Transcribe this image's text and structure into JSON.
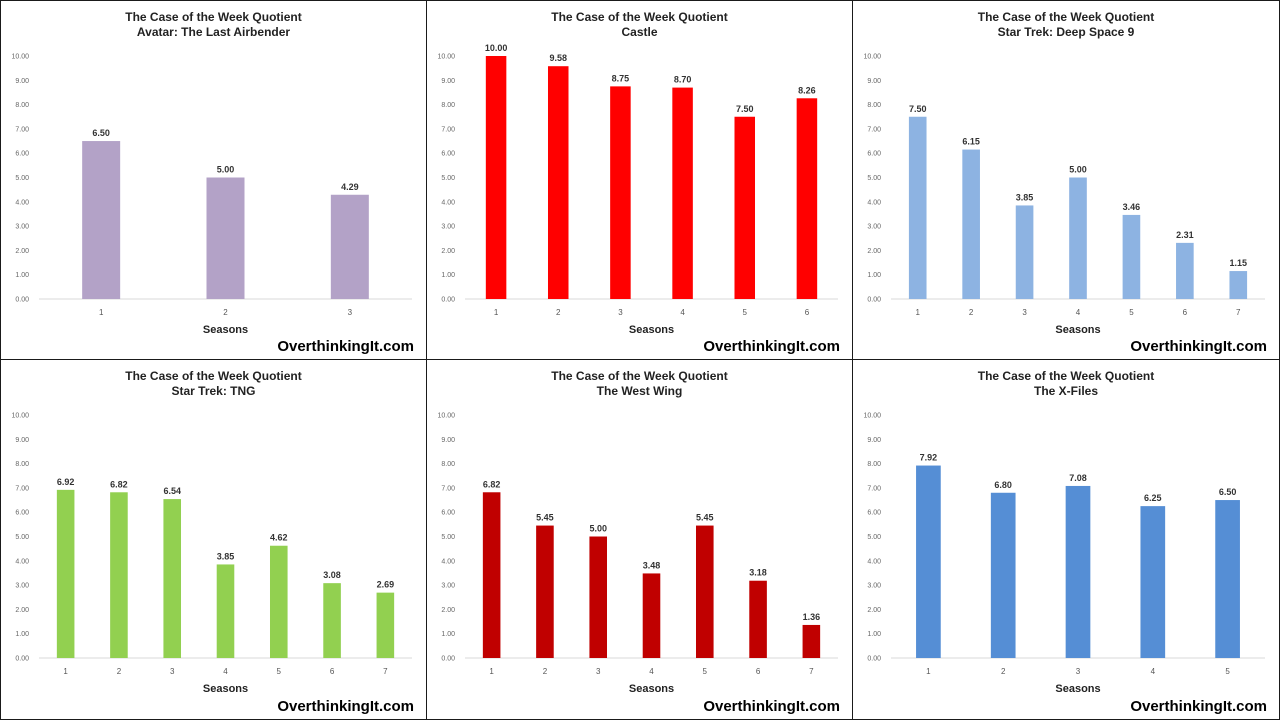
{
  "chart_data": [
    {
      "type": "bar",
      "title": "The Case of the Week Quotient",
      "subtitle": "Avatar: The Last Airbender",
      "xlabel": "Seasons",
      "ylabel": "",
      "ylim": [
        0,
        10
      ],
      "yticks": [
        "0.00",
        "1.00",
        "2.00",
        "3.00",
        "4.00",
        "5.00",
        "6.00",
        "7.00",
        "8.00",
        "9.00",
        "10.00"
      ],
      "categories": [
        "1",
        "2",
        "3"
      ],
      "values": [
        6.5,
        5.0,
        4.29
      ],
      "labels": [
        "6.50",
        "5.00",
        "4.29"
      ],
      "color": "#b3a2c7",
      "watermark": "OverthinkingIt.com"
    },
    {
      "type": "bar",
      "title": "The Case of the Week Quotient",
      "subtitle": "Castle",
      "xlabel": "Seasons",
      "ylabel": "",
      "ylim": [
        0,
        10
      ],
      "yticks": [
        "0.00",
        "1.00",
        "2.00",
        "3.00",
        "4.00",
        "5.00",
        "6.00",
        "7.00",
        "8.00",
        "9.00",
        "10.00"
      ],
      "categories": [
        "1",
        "2",
        "3",
        "4",
        "5",
        "6"
      ],
      "values": [
        10.0,
        9.58,
        8.75,
        8.7,
        7.5,
        8.26
      ],
      "labels": [
        "10.00",
        "9.58",
        "8.75",
        "8.70",
        "7.50",
        "8.26"
      ],
      "color": "#ff0000",
      "watermark": "OverthinkingIt.com"
    },
    {
      "type": "bar",
      "title": "The Case of the Week Quotient",
      "subtitle": "Star Trek: Deep Space 9",
      "xlabel": "Seasons",
      "ylabel": "",
      "ylim": [
        0,
        10
      ],
      "yticks": [
        "0.00",
        "1.00",
        "2.00",
        "3.00",
        "4.00",
        "5.00",
        "6.00",
        "7.00",
        "8.00",
        "9.00",
        "10.00"
      ],
      "categories": [
        "1",
        "2",
        "3",
        "4",
        "5",
        "6",
        "7"
      ],
      "values": [
        7.5,
        6.15,
        3.85,
        5.0,
        3.46,
        2.31,
        1.15
      ],
      "labels": [
        "7.50",
        "6.15",
        "3.85",
        "5.00",
        "3.46",
        "2.31",
        "1.15"
      ],
      "color": "#8db3e2",
      "watermark": "OverthinkingIt.com"
    },
    {
      "type": "bar",
      "title": "The Case of the Week Quotient",
      "subtitle": "Star Trek: TNG",
      "xlabel": "Seasons",
      "ylabel": "",
      "ylim": [
        0,
        10
      ],
      "yticks": [
        "0.00",
        "1.00",
        "2.00",
        "3.00",
        "4.00",
        "5.00",
        "6.00",
        "7.00",
        "8.00",
        "9.00",
        "10.00"
      ],
      "categories": [
        "1",
        "2",
        "3",
        "4",
        "5",
        "6",
        "7"
      ],
      "values": [
        6.92,
        6.82,
        6.54,
        3.85,
        4.62,
        3.08,
        2.69
      ],
      "labels": [
        "6.92",
        "6.82",
        "6.54",
        "3.85",
        "4.62",
        "3.08",
        "2.69"
      ],
      "color": "#92d050",
      "watermark": "OverthinkingIt.com"
    },
    {
      "type": "bar",
      "title": "The Case of the Week Quotient",
      "subtitle": "The West Wing",
      "xlabel": "Seasons",
      "ylabel": "",
      "ylim": [
        0,
        10
      ],
      "yticks": [
        "0.00",
        "1.00",
        "2.00",
        "3.00",
        "4.00",
        "5.00",
        "6.00",
        "7.00",
        "8.00",
        "9.00",
        "10.00"
      ],
      "categories": [
        "1",
        "2",
        "3",
        "4",
        "5",
        "6",
        "7"
      ],
      "values": [
        6.82,
        5.45,
        5.0,
        3.48,
        5.45,
        3.18,
        1.36
      ],
      "labels": [
        "6.82",
        "5.45",
        "5.00",
        "3.48",
        "5.45",
        "3.18",
        "1.36"
      ],
      "color": "#c00000",
      "watermark": "OverthinkingIt.com"
    },
    {
      "type": "bar",
      "title": "The Case of the Week Quotient",
      "subtitle": "The X-Files",
      "xlabel": "Seasons",
      "ylabel": "",
      "ylim": [
        0,
        10
      ],
      "yticks": [
        "0.00",
        "1.00",
        "2.00",
        "3.00",
        "4.00",
        "5.00",
        "6.00",
        "7.00",
        "8.00",
        "9.00",
        "10.00"
      ],
      "categories": [
        "1",
        "2",
        "3",
        "4",
        "5"
      ],
      "values": [
        7.92,
        6.8,
        7.08,
        6.25,
        6.5
      ],
      "labels": [
        "7.92",
        "6.80",
        "7.08",
        "6.25",
        "6.50"
      ],
      "color": "#558ed5",
      "watermark": "OverthinkingIt.com"
    }
  ]
}
